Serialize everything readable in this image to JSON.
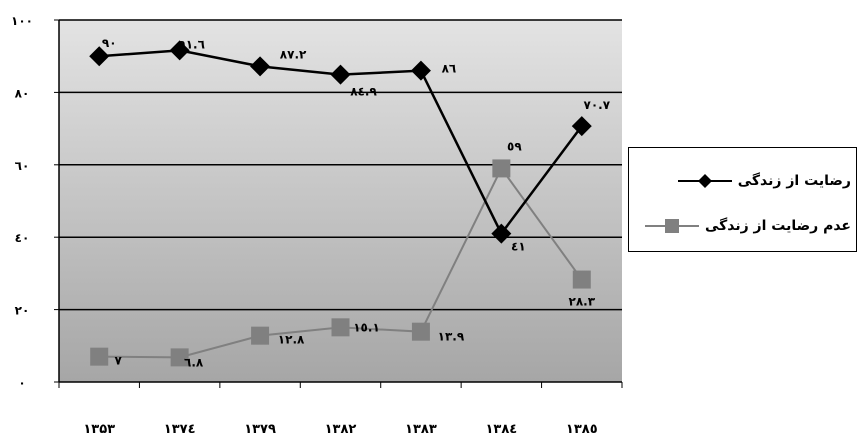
{
  "chart_data": {
    "type": "line",
    "categories": [
      "۱۳۵۳",
      "۱۳۷٤",
      "۱۳۷۹",
      "۱۳۸۲",
      "۱۳۸۳",
      "۱۳۸٤",
      "۱۳۸٥"
    ],
    "ylim": [
      0,
      100
    ],
    "yticks": [
      0,
      20,
      40,
      60,
      80,
      100
    ],
    "ytick_labels": [
      "٠",
      "٢٠",
      "٤٠",
      "٦٠",
      "٨٠",
      "١٠٠"
    ],
    "grid": true,
    "legend_position": "right",
    "series": [
      {
        "name": "رضایت از زندگی",
        "marker": "diamond",
        "color": "#000000",
        "values": [
          90,
          91.6,
          87.2,
          84.9,
          86,
          41,
          70.7
        ],
        "labels": [
          "٩٠",
          "٩١.٦",
          "٨٧.٢",
          "٨٤.٩",
          "٨٦",
          "٤١",
          "٧٠.٧"
        ]
      },
      {
        "name": "عدم رضایت از زندگی",
        "marker": "square",
        "color": "#808080",
        "values": [
          7,
          6.8,
          12.8,
          15.1,
          13.9,
          59,
          28.3
        ],
        "labels": [
          "٧",
          "٦.٨",
          "١٢.٨",
          "١٥.١",
          "١٣.٩",
          "٥٩",
          "٢٨.٣"
        ]
      }
    ]
  }
}
